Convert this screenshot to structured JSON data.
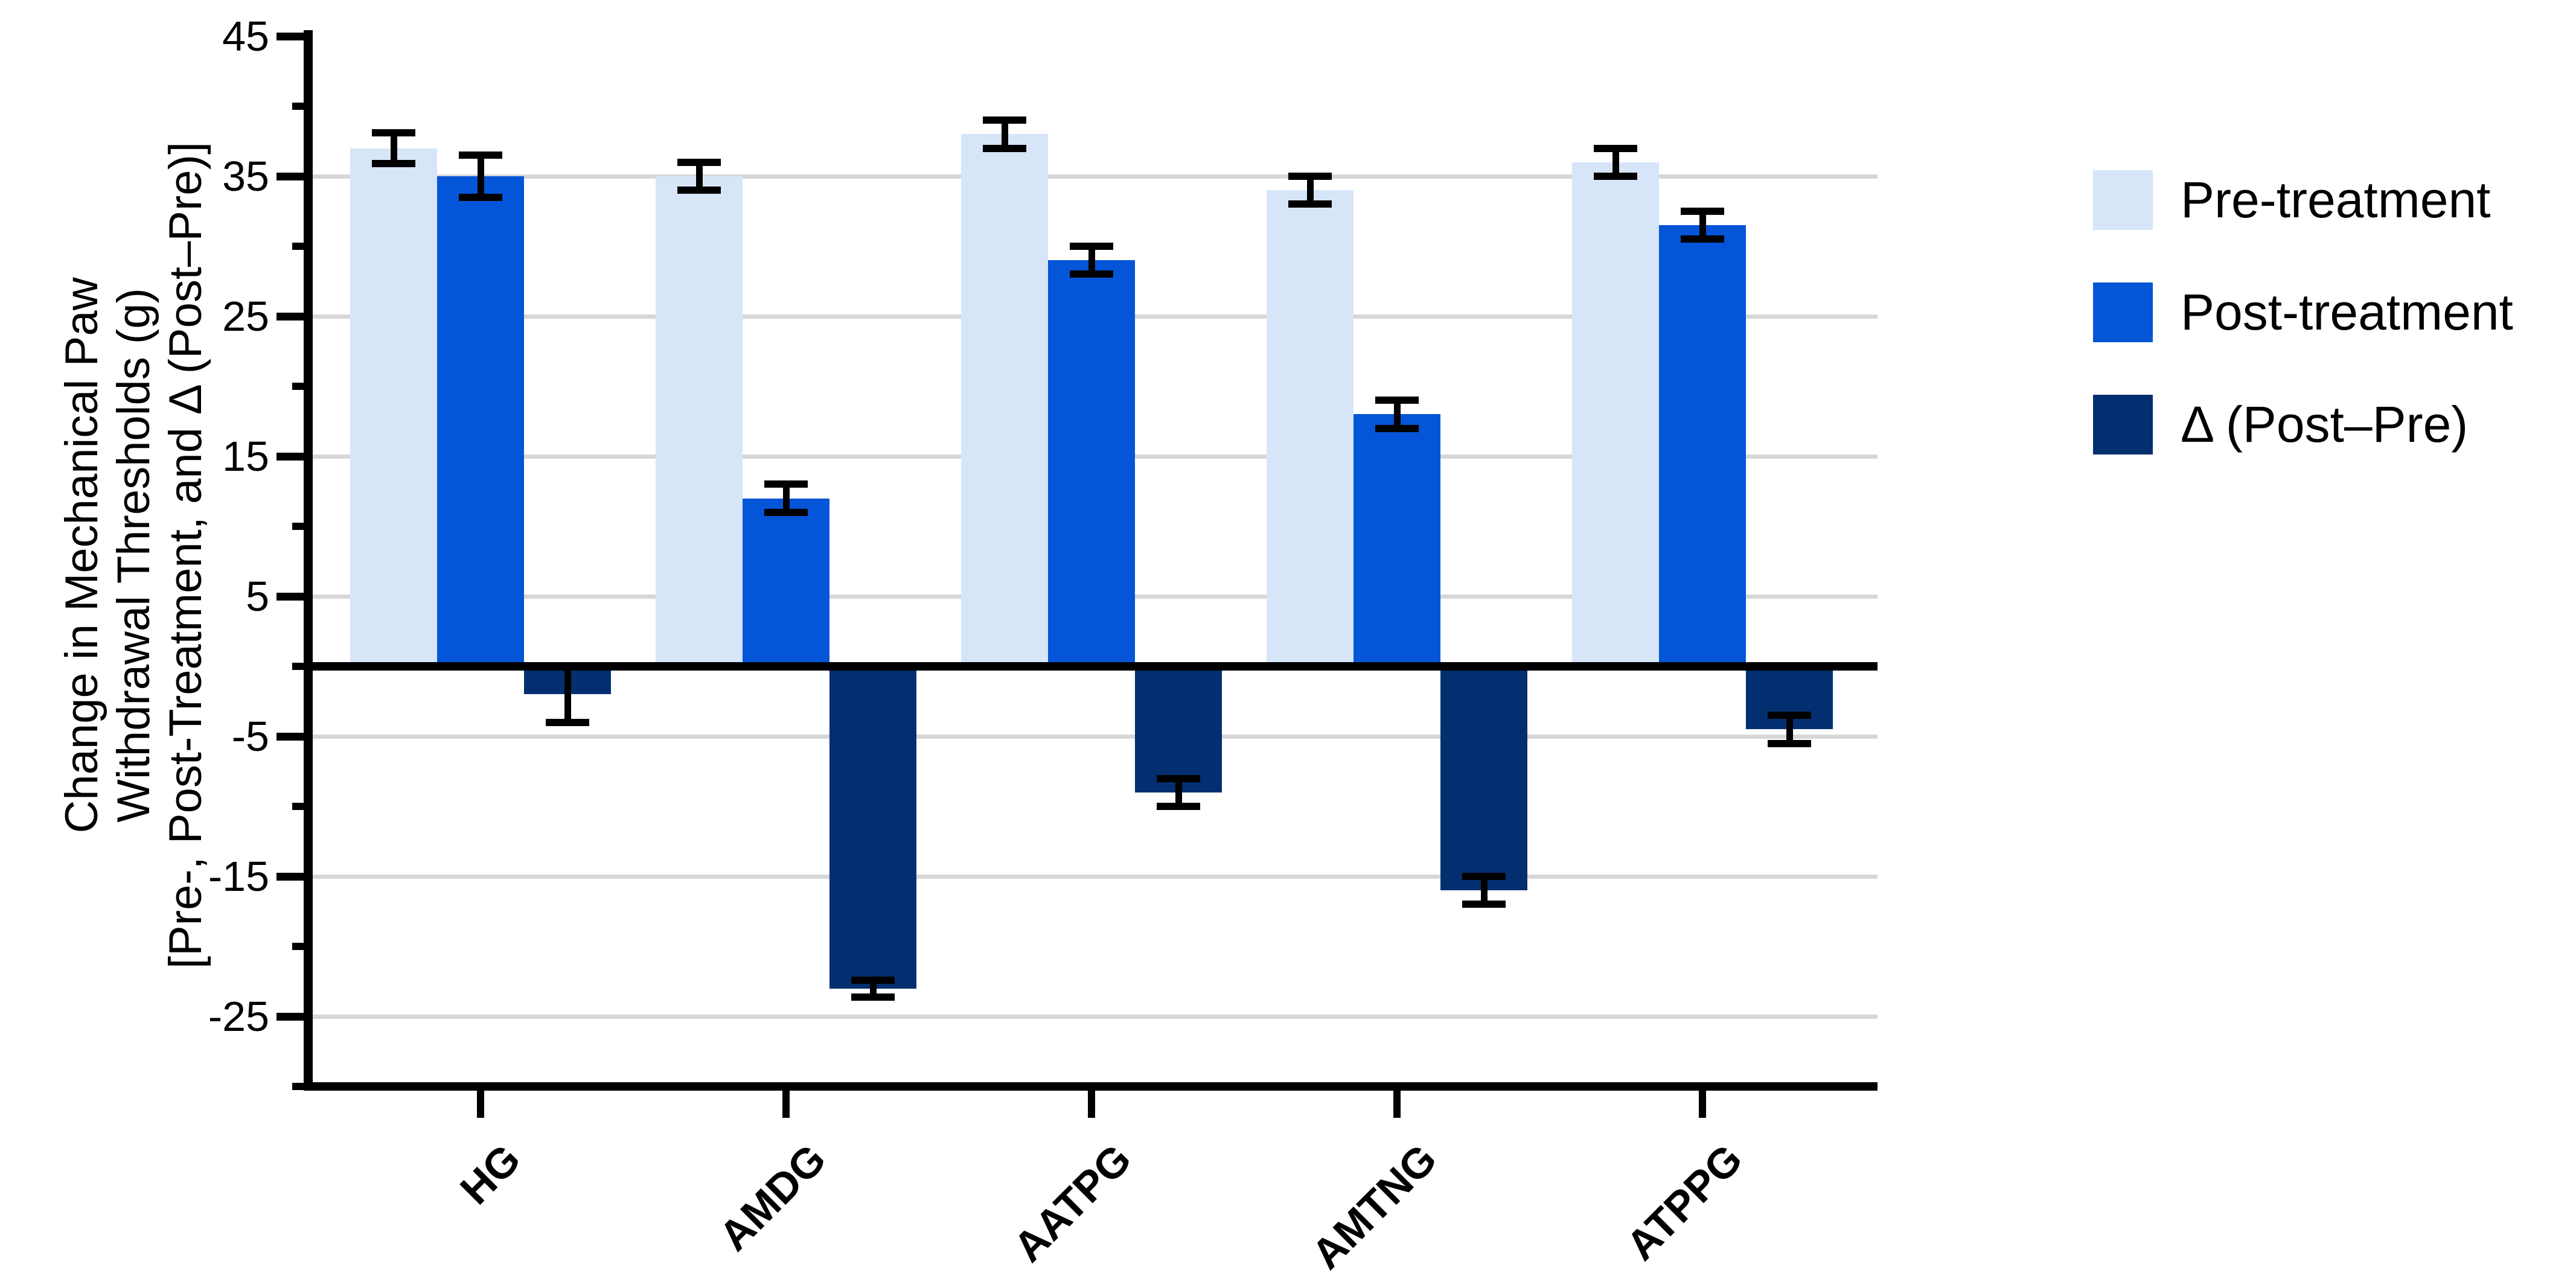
{
  "chart_data": {
    "type": "bar",
    "title": "",
    "ylabel_lines": [
      "Change in Mechanical Paw",
      "Withdrawal Thresholds (g)",
      "[Pre-, Post-Treatment, and Δ (Post–Pre)]"
    ],
    "categories": [
      "HG",
      "AMDG",
      "AATPG",
      "AMTNG",
      "ATPPG"
    ],
    "series": [
      {
        "name": "Pre-treatment",
        "color": "#d7e5f9",
        "values": [
          37,
          35,
          38,
          34,
          36
        ],
        "errors": [
          1.1,
          1,
          1,
          1,
          1
        ]
      },
      {
        "name": "Post-treatment",
        "color": "#0455d8",
        "values": [
          35,
          12,
          29,
          18,
          31.5
        ],
        "errors": [
          1.5,
          1,
          1,
          1,
          1
        ]
      },
      {
        "name": "Δ (Post–Pre)",
        "color": "#032f70",
        "values": [
          -2,
          -23,
          -9,
          -16,
          -4.5
        ],
        "errors": [
          2,
          0.6,
          1,
          1,
          1
        ]
      }
    ],
    "ylim": [
      -30,
      45
    ],
    "y_major_ticks": [
      45,
      35,
      25,
      15,
      5,
      -5,
      -15,
      -25
    ],
    "y_minor_ticks": [
      40,
      30,
      20,
      10,
      0,
      -10,
      -20,
      -30
    ],
    "gridline_values": [
      35,
      25,
      15,
      5,
      -5,
      -15,
      -25
    ],
    "grid": "horizontal-major-only",
    "legend_position": "right",
    "background_color": "#ffffff",
    "axis_color": "#000000",
    "grid_color": "#d7d7d7"
  }
}
